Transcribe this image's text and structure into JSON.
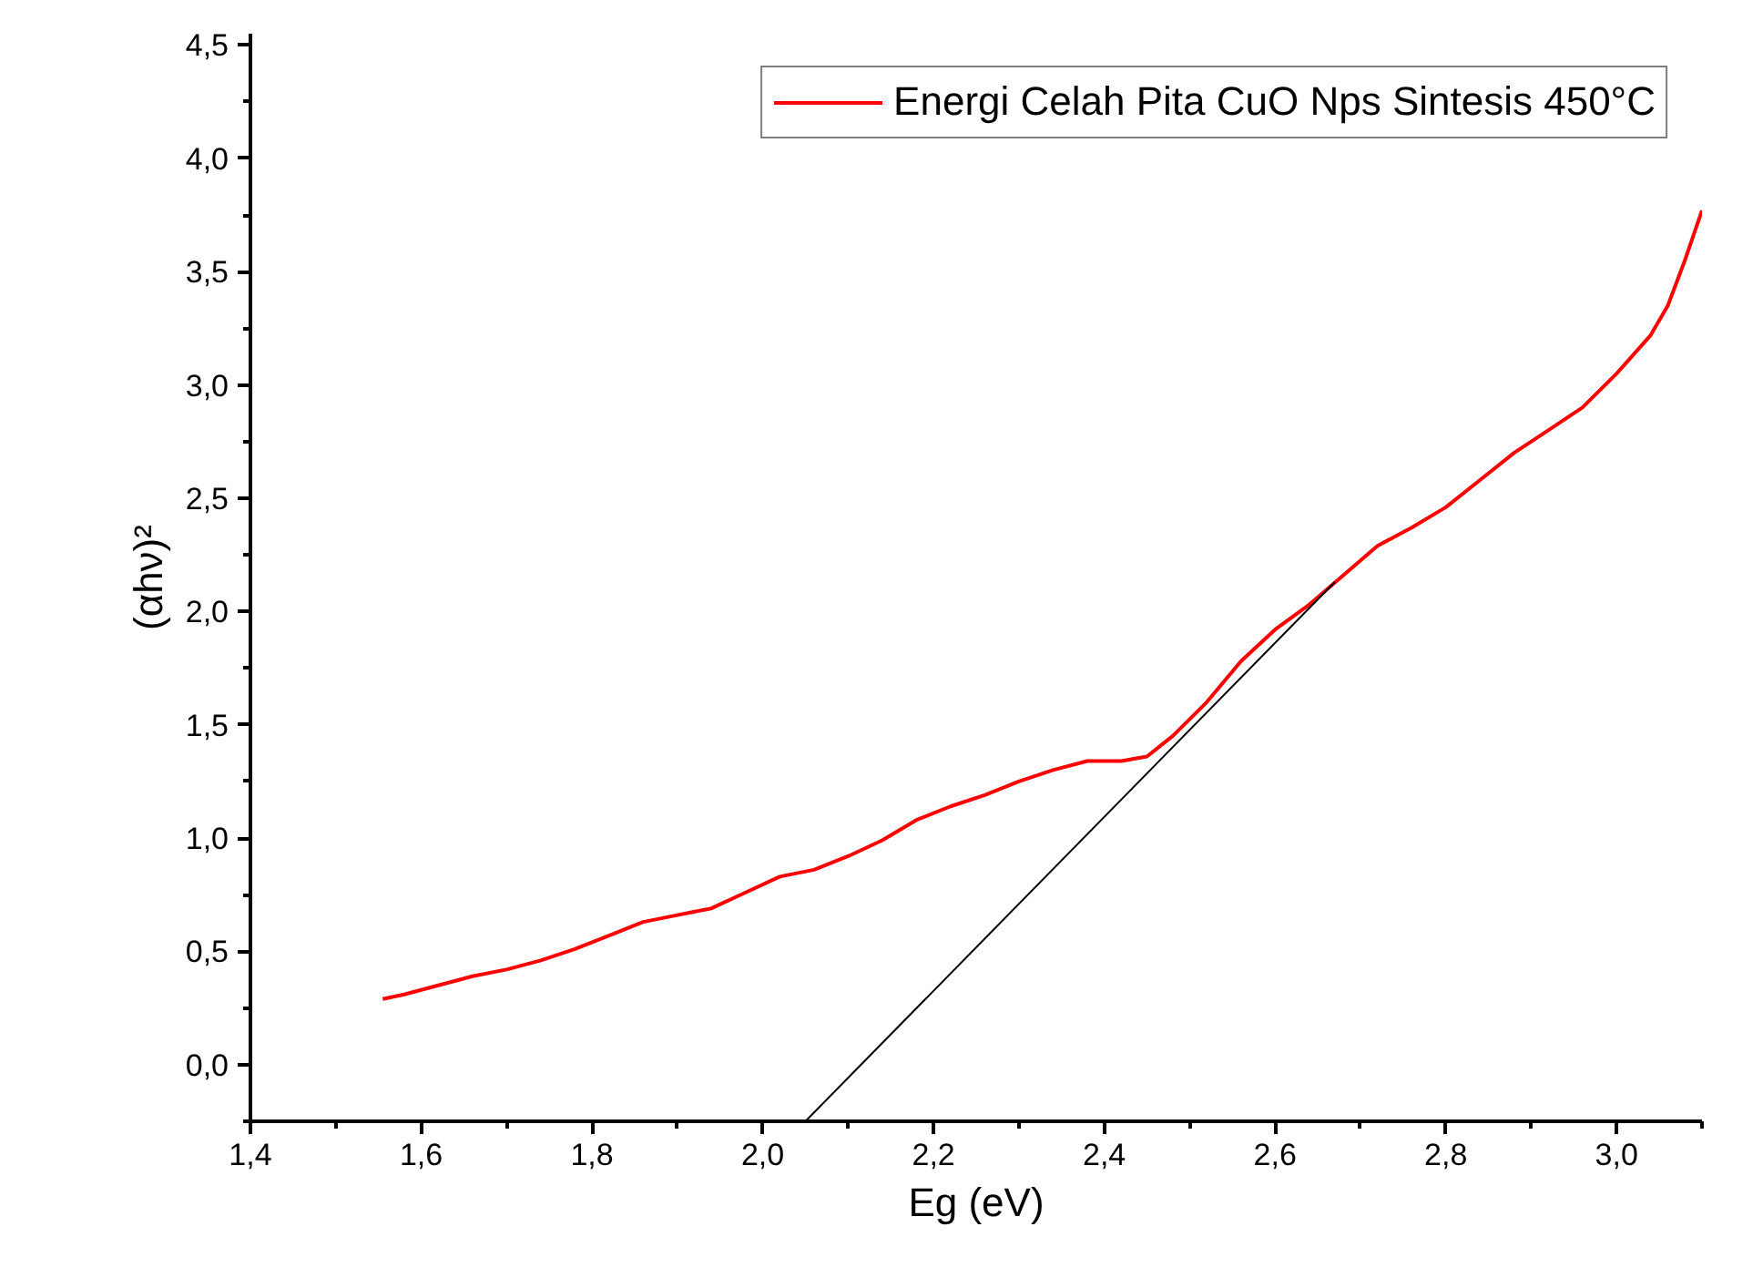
{
  "chart_data": {
    "type": "line",
    "xlabel": "Eg (eV)",
    "ylabel": "(αhν)²",
    "xlim": [
      1.4,
      3.1
    ],
    "ylim": [
      -0.25,
      4.55
    ],
    "xticks": [
      {
        "value": 1.4,
        "label": "1,4"
      },
      {
        "value": 1.6,
        "label": "1,6"
      },
      {
        "value": 1.8,
        "label": "1,8"
      },
      {
        "value": 2.0,
        "label": "2,0"
      },
      {
        "value": 2.2,
        "label": "2,2"
      },
      {
        "value": 2.4,
        "label": "2,4"
      },
      {
        "value": 2.6,
        "label": "2,6"
      },
      {
        "value": 2.8,
        "label": "2,8"
      },
      {
        "value": 3.0,
        "label": "3,0"
      }
    ],
    "yticks": [
      {
        "value": 0,
        "label": "0,0"
      },
      {
        "value": 0.5,
        "label": "0,5"
      },
      {
        "value": 1,
        "label": "1,0"
      },
      {
        "value": 1.5,
        "label": "1,5"
      },
      {
        "value": 2,
        "label": "2,0"
      },
      {
        "value": 2.5,
        "label": "2,5"
      },
      {
        "value": 3,
        "label": "3,0"
      },
      {
        "value": 3.5,
        "label": "3,5"
      },
      {
        "value": 4,
        "label": "4,0"
      },
      {
        "value": 4.5,
        "label": "4,5"
      }
    ],
    "grid": false,
    "legend": "top right",
    "series": [
      {
        "name": "Energi Celah Pita CuO Nps Sintesis 450°C",
        "color": "#ff0000",
        "x": [
          1.555,
          1.58,
          1.62,
          1.66,
          1.7,
          1.74,
          1.78,
          1.82,
          1.86,
          1.9,
          1.94,
          1.98,
          2.02,
          2.06,
          2.1,
          2.14,
          2.18,
          2.22,
          2.26,
          2.3,
          2.34,
          2.38,
          2.42,
          2.45,
          2.48,
          2.52,
          2.56,
          2.6,
          2.64,
          2.68,
          2.72,
          2.76,
          2.8,
          2.84,
          2.88,
          2.92,
          2.96,
          3.0,
          3.04,
          3.06,
          3.08,
          3.1
        ],
        "values": [
          0.29,
          0.31,
          0.35,
          0.39,
          0.42,
          0.46,
          0.51,
          0.57,
          0.63,
          0.66,
          0.69,
          0.76,
          0.83,
          0.86,
          0.92,
          0.99,
          1.08,
          1.14,
          1.19,
          1.25,
          1.3,
          1.34,
          1.34,
          1.36,
          1.45,
          1.6,
          1.78,
          1.92,
          2.03,
          2.16,
          2.29,
          2.37,
          2.46,
          2.58,
          2.7,
          2.8,
          2.9,
          3.05,
          3.22,
          3.35,
          3.55,
          3.77
        ]
      },
      {
        "color": "#000000",
        "x": [
          2.67,
          2.05
        ],
        "values": [
          2.13,
          -0.25
        ]
      }
    ]
  }
}
